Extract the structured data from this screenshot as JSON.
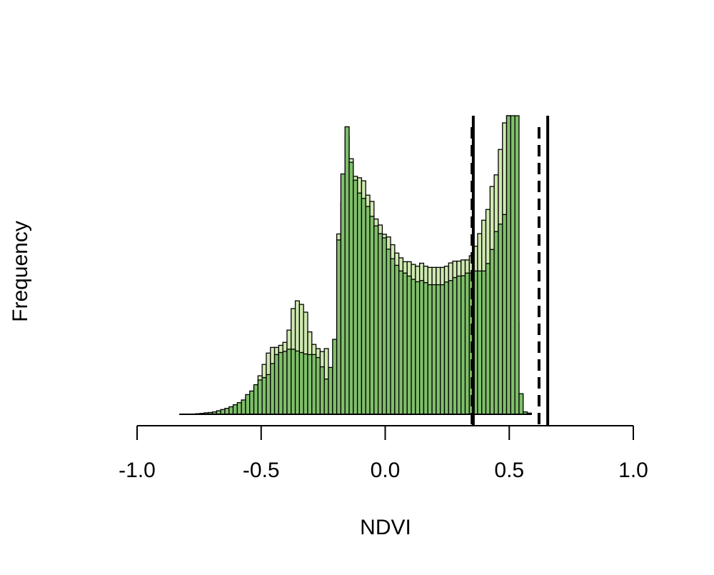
{
  "chart_data": {
    "type": "bar",
    "title": "",
    "xlabel": "NDVI",
    "ylabel": "Frequency",
    "xlim": [
      -1.0,
      1.0
    ],
    "ylim": [
      0,
      100
    ],
    "xticks": [
      -1.0,
      -0.5,
      0.0,
      0.5,
      1.0
    ],
    "xtick_labels": [
      "-1.0",
      "-0.5",
      "0.0",
      "0.5",
      "1.0"
    ],
    "y_ticks_shown": false,
    "grid": false,
    "legend": null,
    "bin_start": -0.83,
    "bin_width": 0.0167,
    "series": [
      {
        "color": "#cfe8b0",
        "values": [
          0,
          0,
          0,
          0,
          0,
          0,
          0,
          0,
          0.1,
          0.2,
          0.3,
          0.5,
          0.8,
          1.3,
          1.8,
          3.5,
          5.7,
          6.9,
          9.2,
          12.9,
          16.7,
          20.5,
          22.4,
          22.4,
          23.1,
          24.1,
          28.2,
          35.4,
          38.0,
          36.8,
          34.2,
          27.6,
          23.4,
          22.0,
          21.0,
          22.0,
          10.9,
          10.4,
          60.4,
          71.0,
          93.2,
          85.6,
          79.7,
          79.2,
          78.2,
          73.4,
          71.3,
          65.4,
          63.4,
          60.3,
          59.4,
          56.8,
          54.0,
          52.4,
          51.1,
          51.1,
          50.2,
          49.6,
          50.6,
          49.6,
          49.2,
          49.2,
          49.2,
          49.2,
          49.6,
          50.7,
          51.3,
          51.3,
          51.7,
          51.7,
          53.1,
          56.3,
          60.5,
          65.0,
          68.6,
          76.3,
          80.2,
          88.7,
          97.6,
          100.0,
          68.3,
          30.9,
          0,
          0,
          0
        ]
      },
      {
        "color": "#7fbf6a",
        "values": [
          0,
          0,
          0,
          0.1,
          0.2,
          0.3,
          0.5,
          0.6,
          0.8,
          1.2,
          1.6,
          2.0,
          2.5,
          3.2,
          3.9,
          4.8,
          6.6,
          7.8,
          9.9,
          11.5,
          12.3,
          13.3,
          17.0,
          20.0,
          20.7,
          21.1,
          21.8,
          21.8,
          21.2,
          20.7,
          20.2,
          20.0,
          20.0,
          19.0,
          15.9,
          11.8,
          15.7,
          25.1,
          58.4,
          80.5,
          96.3,
          84.4,
          78.4,
          74.1,
          72.3,
          69.6,
          66.3,
          63.1,
          60.5,
          59.1,
          55.3,
          52.1,
          49.9,
          48.0,
          47.3,
          46.3,
          45.2,
          44.4,
          44.8,
          44.1,
          43.4,
          43.4,
          43.4,
          43.4,
          44.3,
          44.8,
          45.8,
          46.3,
          46.4,
          47.3,
          47.3,
          48.0,
          48.0,
          48.0,
          50.5,
          55.2,
          61.2,
          63.7,
          66.9,
          100.0,
          100.0,
          100.0,
          6.9,
          0.8,
          0.4
        ]
      }
    ],
    "vlines": [
      {
        "x": 0.35,
        "style": "dashed"
      },
      {
        "x": 0.355,
        "style": "solid"
      },
      {
        "x": 0.62,
        "style": "dashed"
      },
      {
        "x": 0.655,
        "style": "solid"
      }
    ]
  }
}
